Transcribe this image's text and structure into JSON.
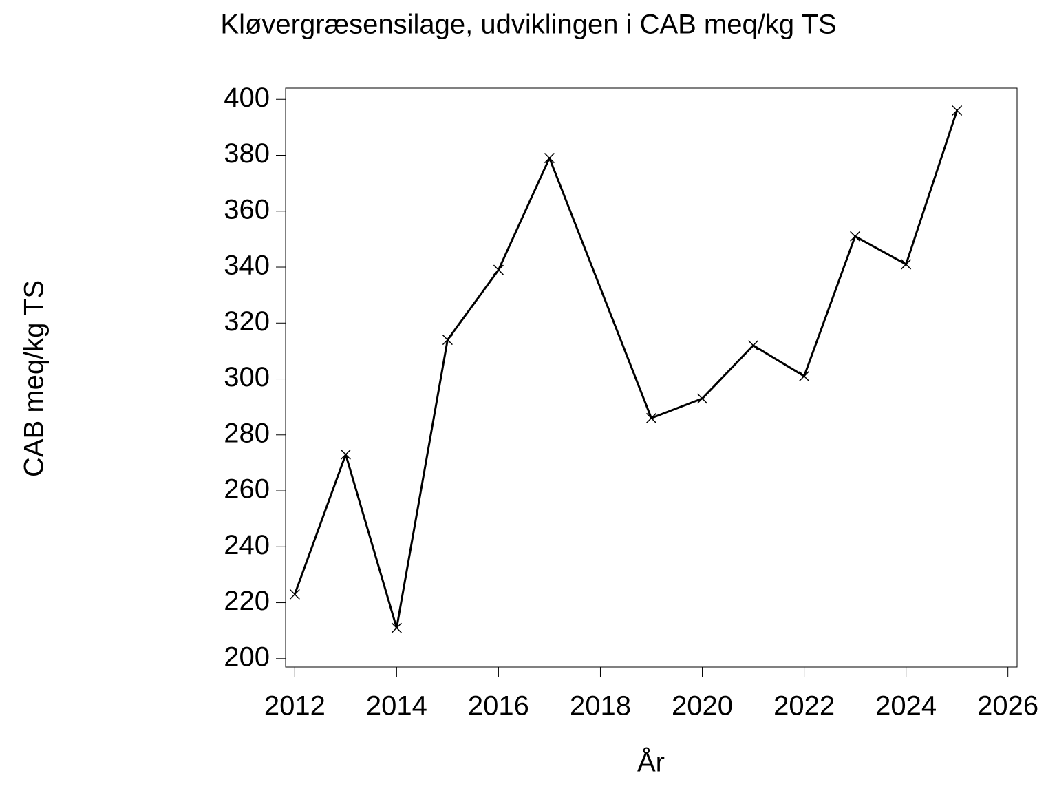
{
  "chart_data": {
    "type": "line",
    "title": "Kløvergræsensilage,  udviklingen  i  CAB  meq/kg  TS",
    "x_label": "År",
    "y_label": "CAB meq/kg TS",
    "x": [
      2012,
      2013,
      2014,
      2015,
      2016,
      2017,
      2019,
      2020,
      2021,
      2022,
      2023,
      2024,
      2025
    ],
    "series": [
      {
        "name": "CAB",
        "color": "#000000",
        "values": [
          223,
          273,
          211,
          314,
          339,
          379,
          286,
          293,
          312,
          301,
          351,
          341,
          396
        ]
      }
    ],
    "xlim": [
      2011.82,
      2026.18
    ],
    "xticks": [
      2012,
      2014,
      2016,
      2018,
      2020,
      2022,
      2024,
      2026
    ],
    "ylim": [
      197,
      404
    ],
    "yticks": [
      200,
      220,
      240,
      260,
      280,
      300,
      320,
      340,
      360,
      380,
      400
    ],
    "grid": false
  }
}
